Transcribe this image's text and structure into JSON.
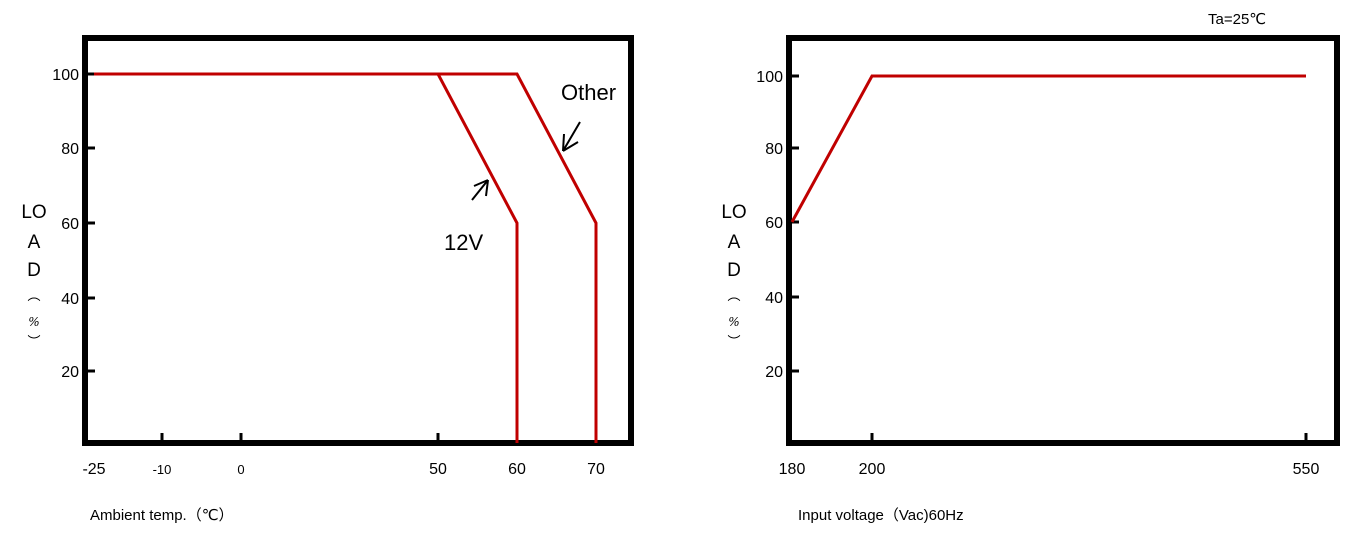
{
  "chart_data": [
    {
      "type": "line",
      "xlabel": "Ambient temp.（℃）",
      "ylabel_lines": [
        "LO",
        "A",
        "D",
        "︵",
        "%",
        "︶"
      ],
      "x_ticks": [
        -25,
        -10,
        0,
        50,
        60,
        70
      ],
      "x_tick_labels": [
        "-25",
        "-10",
        "0",
        "50",
        "60",
        "70"
      ],
      "y_ticks": [
        20,
        40,
        60,
        80,
        100
      ],
      "y_tick_labels": [
        "20",
        "40",
        "60",
        "80",
        "100"
      ],
      "xlim": [
        -25,
        73
      ],
      "ylim": [
        0,
        110
      ],
      "series": [
        {
          "name": "12V",
          "color": "#c00000",
          "x": [
            -25,
            50,
            60,
            60
          ],
          "y": [
            100,
            100,
            60,
            0
          ]
        },
        {
          "name": "Other",
          "color": "#c00000",
          "x": [
            -25,
            60,
            70,
            70
          ],
          "y": [
            100,
            100,
            60,
            0
          ]
        }
      ],
      "annotations": [
        "12V",
        "Other"
      ]
    },
    {
      "type": "line",
      "xlabel": "Input voltage（Vac)60Hz",
      "ylabel_lines": [
        "LO",
        "A",
        "D",
        "︵",
        "%",
        "︶"
      ],
      "annotation": "Ta=25℃",
      "x_ticks": [
        180,
        200,
        550
      ],
      "x_tick_labels": [
        "180",
        "200",
        "550"
      ],
      "y_ticks": [
        20,
        40,
        60,
        80,
        100
      ],
      "y_tick_labels": [
        "20",
        "40",
        "60",
        "80",
        "100"
      ],
      "ylim": [
        0,
        110
      ],
      "series": [
        {
          "color": "#c00000",
          "x": [
            180,
            200,
            550
          ],
          "y": [
            60,
            100,
            100
          ]
        }
      ]
    }
  ]
}
